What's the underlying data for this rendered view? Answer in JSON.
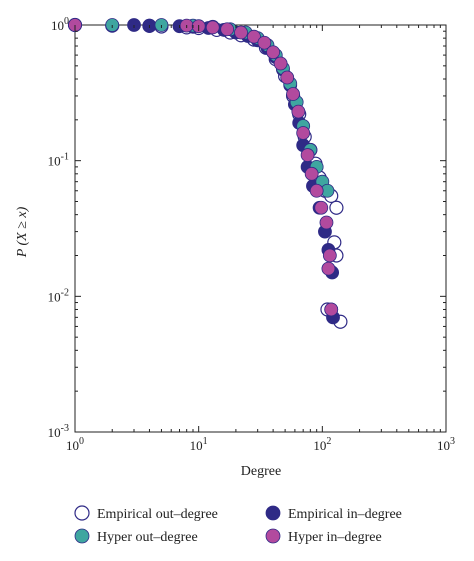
{
  "chart_data": {
    "type": "scatter",
    "xlabel": "Degree",
    "ylabel": "P (X ≥ x)",
    "xscale": "log",
    "yscale": "log",
    "xlim": [
      1,
      1000
    ],
    "ylim": [
      0.001,
      1
    ],
    "x_tick_labels": [
      {
        "base": "10",
        "exp": "0"
      },
      {
        "base": "10",
        "exp": "1"
      },
      {
        "base": "10",
        "exp": "2"
      },
      {
        "base": "10",
        "exp": "3"
      }
    ],
    "y_tick_labels": [
      {
        "base": "10",
        "exp": "0"
      },
      {
        "base": "10",
        "exp": "-1"
      },
      {
        "base": "10",
        "exp": "-2"
      },
      {
        "base": "10",
        "exp": "-3"
      }
    ],
    "legend_position": "bottom",
    "series": [
      {
        "name": "Empirical out–degree",
        "marker": "open-circle",
        "color": "#2f2a86",
        "points": [
          [
            1,
            1.0
          ],
          [
            2,
            0.99
          ],
          [
            4,
            0.985
          ],
          [
            5,
            0.975
          ],
          [
            8,
            0.96
          ],
          [
            10,
            0.95
          ],
          [
            14,
            0.92
          ],
          [
            18,
            0.88
          ],
          [
            22,
            0.84
          ],
          [
            28,
            0.78
          ],
          [
            35,
            0.68
          ],
          [
            42,
            0.56
          ],
          [
            50,
            0.42
          ],
          [
            58,
            0.3
          ],
          [
            65,
            0.22
          ],
          [
            72,
            0.15
          ],
          [
            80,
            0.12
          ],
          [
            88,
            0.095
          ],
          [
            95,
            0.075
          ],
          [
            105,
            0.06
          ],
          [
            118,
            0.055
          ],
          [
            130,
            0.045
          ],
          [
            125,
            0.025
          ],
          [
            130,
            0.02
          ],
          [
            110,
            0.008
          ],
          [
            140,
            0.0065
          ]
        ]
      },
      {
        "name": "Empirical in–degree",
        "marker": "filled-circle",
        "color": "#2f2a86",
        "points": [
          [
            1,
            1.0
          ],
          [
            3,
            1.0
          ],
          [
            4,
            0.99
          ],
          [
            7,
            0.98
          ],
          [
            9,
            0.97
          ],
          [
            12,
            0.95
          ],
          [
            16,
            0.92
          ],
          [
            20,
            0.88
          ],
          [
            25,
            0.83
          ],
          [
            30,
            0.77
          ],
          [
            36,
            0.68
          ],
          [
            42,
            0.58
          ],
          [
            48,
            0.47
          ],
          [
            55,
            0.36
          ],
          [
            60,
            0.26
          ],
          [
            65,
            0.19
          ],
          [
            70,
            0.13
          ],
          [
            76,
            0.09
          ],
          [
            84,
            0.065
          ],
          [
            95,
            0.045
          ],
          [
            105,
            0.03
          ],
          [
            112,
            0.022
          ],
          [
            120,
            0.015
          ],
          [
            118,
            0.008
          ],
          [
            122,
            0.007
          ]
        ]
      },
      {
        "name": "Hyper out–degree",
        "marker": "filled-circle",
        "color": "#3fa6a0",
        "points": [
          [
            2,
            1.0
          ],
          [
            5,
            1.0
          ],
          [
            9,
            0.99
          ],
          [
            13,
            0.97
          ],
          [
            18,
            0.93
          ],
          [
            24,
            0.88
          ],
          [
            30,
            0.8
          ],
          [
            36,
            0.71
          ],
          [
            42,
            0.6
          ],
          [
            48,
            0.48
          ],
          [
            55,
            0.37
          ],
          [
            62,
            0.27
          ],
          [
            70,
            0.18
          ],
          [
            80,
            0.12
          ],
          [
            90,
            0.09
          ],
          [
            100,
            0.07
          ],
          [
            110,
            0.06
          ]
        ]
      },
      {
        "name": "Hyper in–degree",
        "marker": "filled-circle",
        "color": "#b24a9e",
        "points": [
          [
            1,
            1.0
          ],
          [
            8,
            0.99
          ],
          [
            10,
            0.98
          ],
          [
            13,
            0.96
          ],
          [
            17,
            0.93
          ],
          [
            22,
            0.88
          ],
          [
            28,
            0.82
          ],
          [
            34,
            0.74
          ],
          [
            40,
            0.63
          ],
          [
            46,
            0.52
          ],
          [
            52,
            0.41
          ],
          [
            58,
            0.31
          ],
          [
            64,
            0.23
          ],
          [
            70,
            0.16
          ],
          [
            76,
            0.11
          ],
          [
            82,
            0.08
          ],
          [
            90,
            0.06
          ],
          [
            98,
            0.045
          ],
          [
            108,
            0.035
          ],
          [
            115,
            0.02
          ],
          [
            112,
            0.016
          ],
          [
            118,
            0.008
          ]
        ]
      }
    ]
  }
}
